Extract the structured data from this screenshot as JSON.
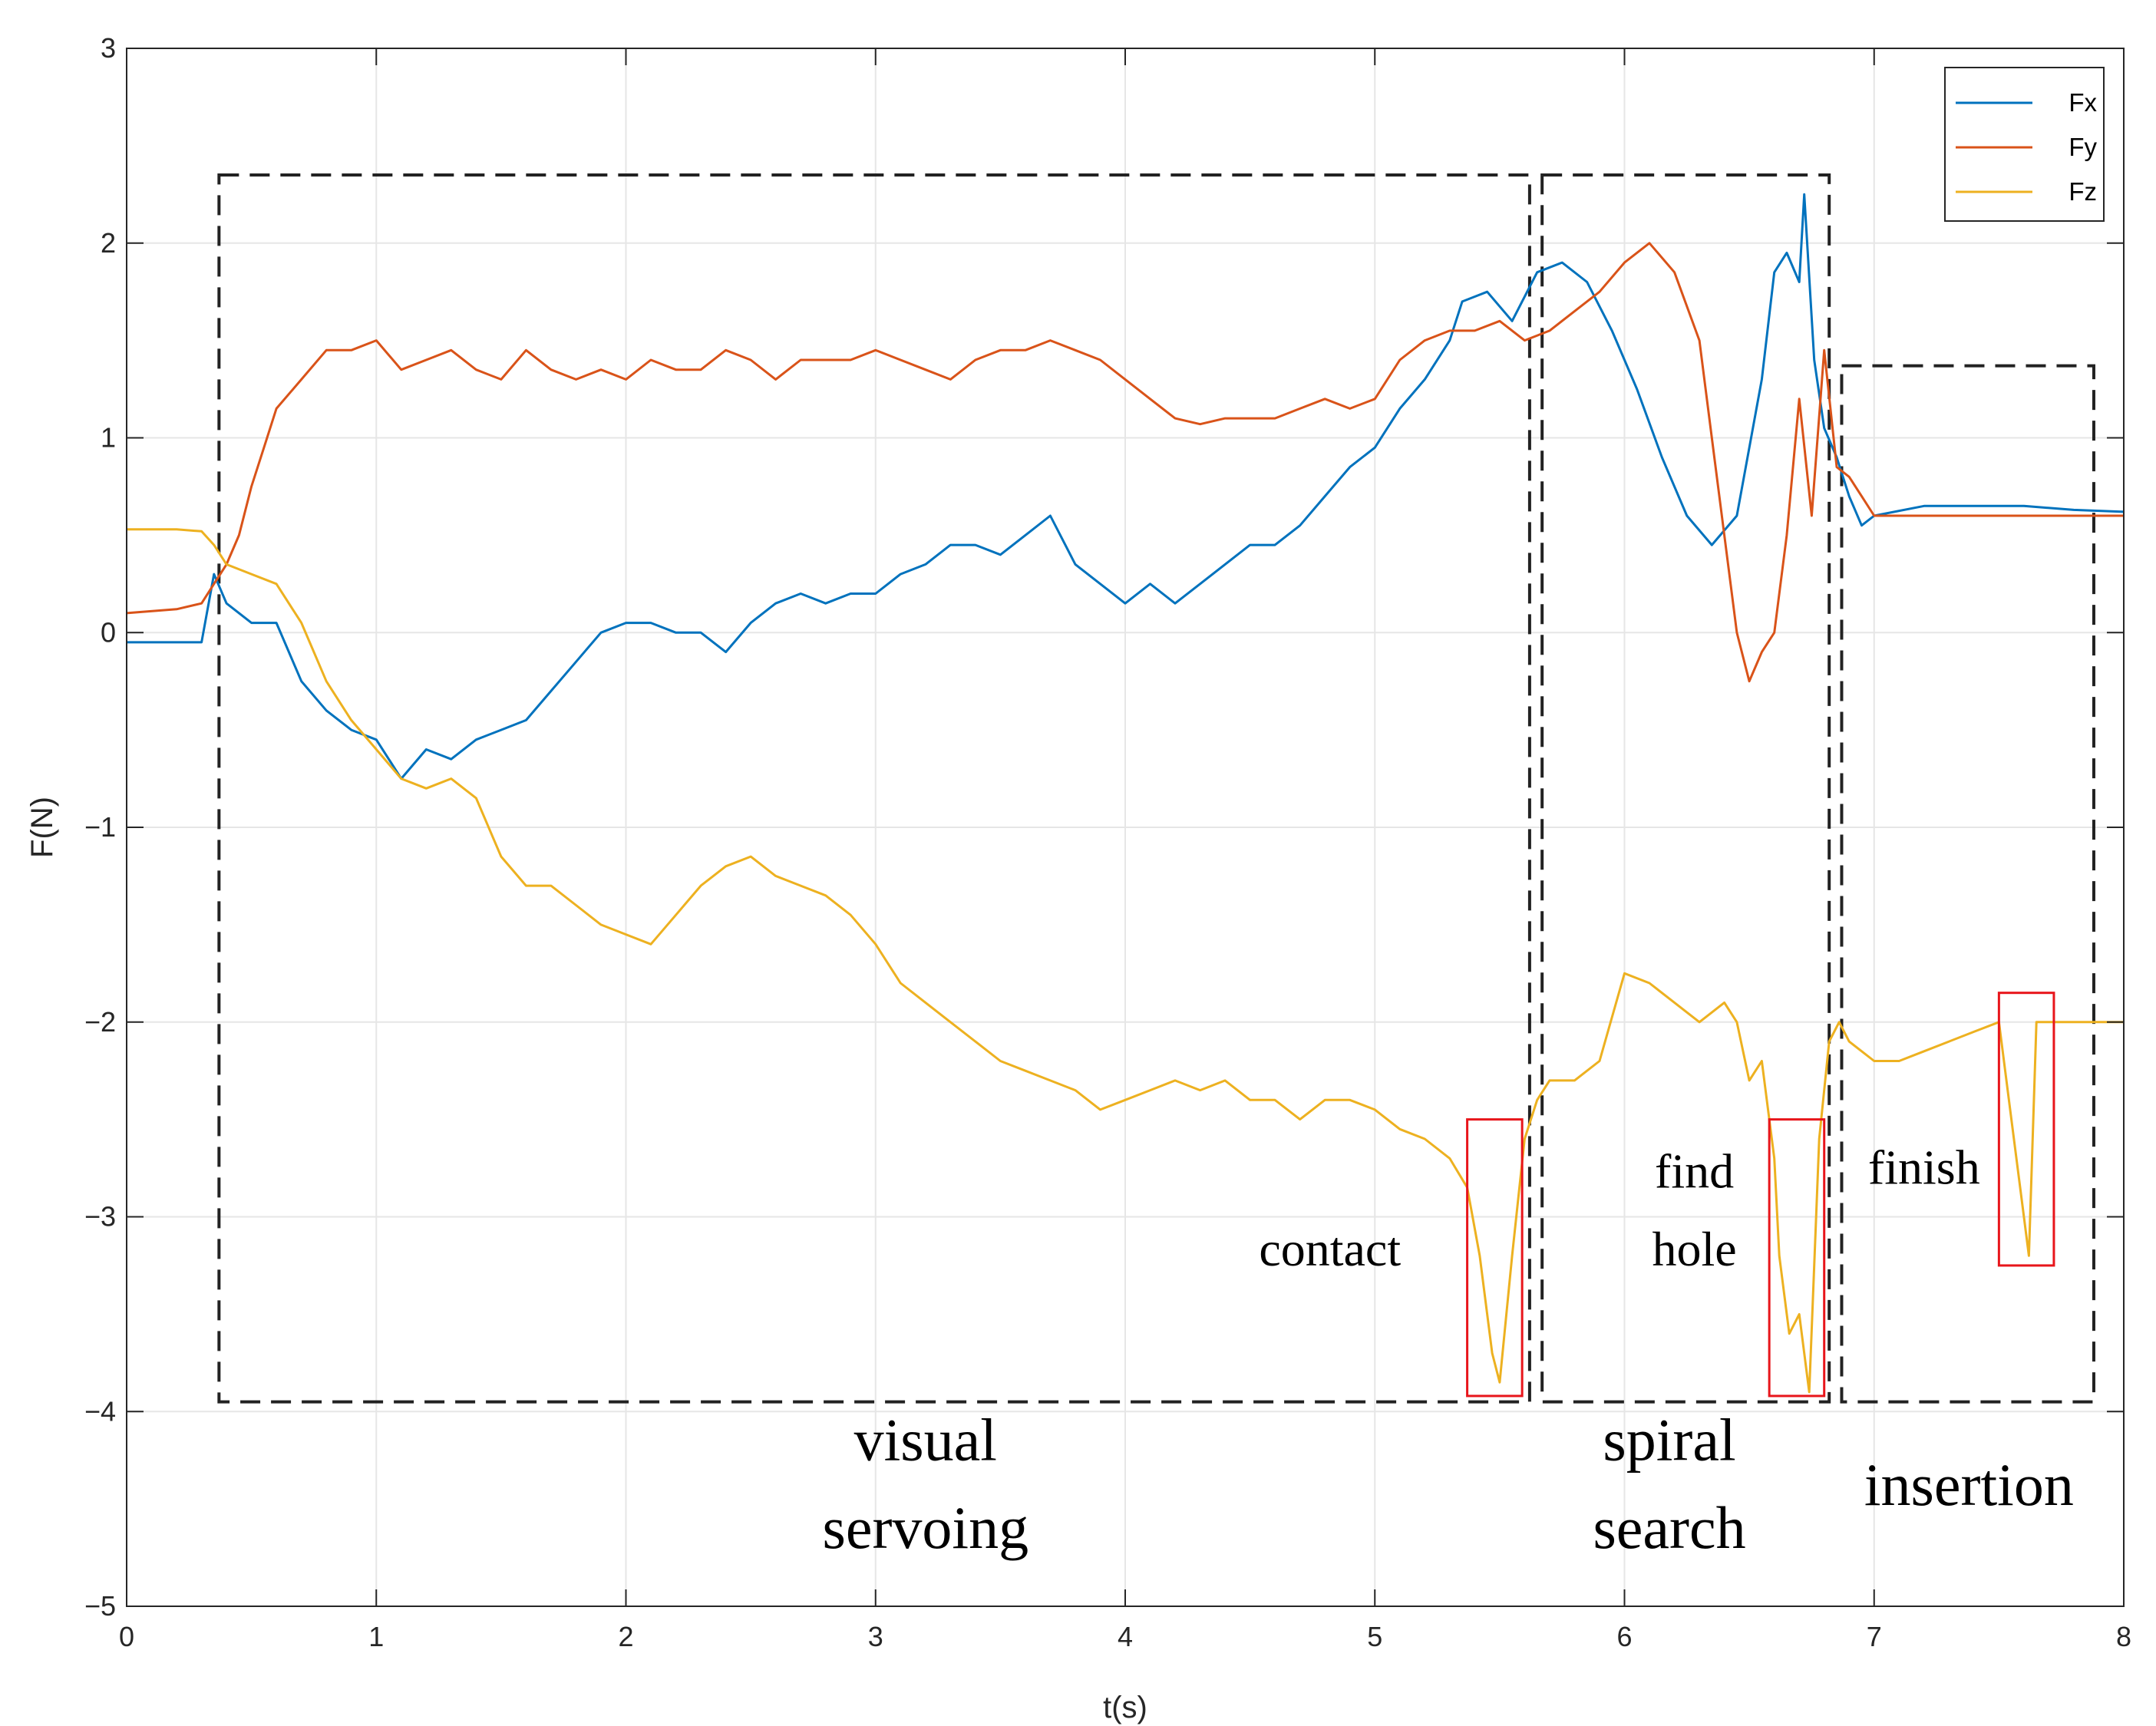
{
  "chart_data": {
    "type": "line",
    "xlabel": "t(s)",
    "ylabel": "F(N)",
    "xlim": [
      0,
      8
    ],
    "ylim": [
      -5,
      3
    ],
    "xticks": [
      0,
      1,
      2,
      3,
      4,
      5,
      6,
      7,
      8
    ],
    "yticks": [
      3,
      2,
      1,
      0,
      -1,
      -2,
      -3,
      -4,
      -5
    ],
    "grid": true,
    "legend_position": "top-right",
    "series": [
      {
        "name": "Fx",
        "color": "#0072BD",
        "x": [
          0,
          0.2,
          0.3,
          0.35,
          0.4,
          0.5,
          0.6,
          0.7,
          0.8,
          0.9,
          1.0,
          1.1,
          1.2,
          1.3,
          1.4,
          1.5,
          1.6,
          1.7,
          1.8,
          1.9,
          2.0,
          2.1,
          2.2,
          2.3,
          2.4,
          2.5,
          2.6,
          2.7,
          2.8,
          2.9,
          3.0,
          3.1,
          3.2,
          3.3,
          3.4,
          3.5,
          3.6,
          3.7,
          3.8,
          3.9,
          4.0,
          4.1,
          4.2,
          4.3,
          4.4,
          4.5,
          4.6,
          4.7,
          4.8,
          4.9,
          5.0,
          5.1,
          5.2,
          5.3,
          5.35,
          5.45,
          5.55,
          5.65,
          5.75,
          5.85,
          5.95,
          6.05,
          6.15,
          6.25,
          6.35,
          6.45,
          6.55,
          6.6,
          6.65,
          6.7,
          6.72,
          6.76,
          6.8,
          6.85,
          6.9,
          6.95,
          7.0,
          7.2,
          7.4,
          7.6,
          7.8,
          8.0
        ],
        "y": [
          -0.05,
          -0.05,
          -0.05,
          0.3,
          0.15,
          0.05,
          0.05,
          -0.25,
          -0.4,
          -0.5,
          -0.55,
          -0.75,
          -0.6,
          -0.65,
          -0.55,
          -0.5,
          -0.45,
          -0.3,
          -0.15,
          0.0,
          0.05,
          0.05,
          0.0,
          0.0,
          -0.1,
          0.05,
          0.15,
          0.2,
          0.15,
          0.2,
          0.2,
          0.3,
          0.35,
          0.45,
          0.45,
          0.4,
          0.5,
          0.6,
          0.35,
          0.25,
          0.15,
          0.25,
          0.15,
          0.25,
          0.35,
          0.45,
          0.45,
          0.55,
          0.7,
          0.85,
          0.95,
          1.15,
          1.3,
          1.5,
          1.7,
          1.75,
          1.6,
          1.85,
          1.9,
          1.8,
          1.55,
          1.25,
          0.9,
          0.6,
          0.45,
          0.6,
          1.3,
          1.85,
          1.95,
          1.8,
          2.25,
          1.4,
          1.05,
          0.9,
          0.7,
          0.55,
          0.6,
          0.65,
          0.65,
          0.65,
          0.63,
          0.62
        ]
      },
      {
        "name": "Fy",
        "color": "#D95319",
        "x": [
          0,
          0.2,
          0.3,
          0.35,
          0.4,
          0.45,
          0.5,
          0.55,
          0.6,
          0.7,
          0.8,
          0.9,
          1.0,
          1.1,
          1.2,
          1.3,
          1.4,
          1.5,
          1.6,
          1.7,
          1.8,
          1.9,
          2.0,
          2.1,
          2.2,
          2.3,
          2.4,
          2.5,
          2.6,
          2.7,
          2.8,
          2.9,
          3.0,
          3.1,
          3.2,
          3.3,
          3.4,
          3.5,
          3.6,
          3.7,
          3.8,
          3.9,
          4.0,
          4.1,
          4.2,
          4.3,
          4.4,
          4.5,
          4.6,
          4.7,
          4.8,
          4.9,
          5.0,
          5.1,
          5.2,
          5.3,
          5.4,
          5.5,
          5.6,
          5.7,
          5.8,
          5.9,
          6.0,
          6.1,
          6.2,
          6.3,
          6.35,
          6.4,
          6.45,
          6.5,
          6.55,
          6.6,
          6.65,
          6.7,
          6.75,
          6.8,
          6.85,
          6.9,
          6.95,
          7.0,
          7.2,
          7.4,
          7.6,
          7.8,
          8.0
        ],
        "y": [
          0.1,
          0.12,
          0.15,
          0.25,
          0.35,
          0.5,
          0.75,
          0.95,
          1.15,
          1.3,
          1.45,
          1.45,
          1.5,
          1.35,
          1.4,
          1.45,
          1.35,
          1.3,
          1.45,
          1.35,
          1.3,
          1.35,
          1.3,
          1.4,
          1.35,
          1.35,
          1.45,
          1.4,
          1.3,
          1.4,
          1.4,
          1.4,
          1.45,
          1.4,
          1.35,
          1.3,
          1.4,
          1.45,
          1.45,
          1.5,
          1.45,
          1.4,
          1.3,
          1.2,
          1.1,
          1.07,
          1.1,
          1.1,
          1.1,
          1.15,
          1.2,
          1.15,
          1.2,
          1.4,
          1.5,
          1.55,
          1.55,
          1.6,
          1.5,
          1.55,
          1.65,
          1.75,
          1.9,
          2.0,
          1.85,
          1.5,
          1.0,
          0.5,
          0.0,
          -0.25,
          -0.1,
          0.0,
          0.5,
          1.2,
          0.6,
          1.45,
          0.85,
          0.8,
          0.7,
          0.6,
          0.6,
          0.6,
          0.6,
          0.6,
          0.6
        ]
      },
      {
        "name": "Fz",
        "color": "#EDB120",
        "x": [
          0,
          0.2,
          0.3,
          0.35,
          0.4,
          0.5,
          0.6,
          0.7,
          0.8,
          0.9,
          1.0,
          1.1,
          1.2,
          1.3,
          1.4,
          1.5,
          1.6,
          1.7,
          1.8,
          1.9,
          2.0,
          2.1,
          2.2,
          2.3,
          2.4,
          2.5,
          2.6,
          2.7,
          2.8,
          2.9,
          3.0,
          3.1,
          3.2,
          3.3,
          3.4,
          3.5,
          3.6,
          3.7,
          3.8,
          3.9,
          4.0,
          4.1,
          4.2,
          4.3,
          4.4,
          4.5,
          4.6,
          4.7,
          4.8,
          4.9,
          5.0,
          5.1,
          5.2,
          5.3,
          5.37,
          5.42,
          5.47,
          5.5,
          5.55,
          5.6,
          5.65,
          5.7,
          5.8,
          5.9,
          6.0,
          6.1,
          6.2,
          6.3,
          6.4,
          6.45,
          6.5,
          6.55,
          6.6,
          6.62,
          6.66,
          6.7,
          6.74,
          6.78,
          6.82,
          6.86,
          6.9,
          7.0,
          7.1,
          7.2,
          7.3,
          7.4,
          7.5,
          7.55,
          7.6,
          7.62,
          7.65,
          7.7,
          7.8,
          8.0
        ],
        "y": [
          0.53,
          0.53,
          0.52,
          0.45,
          0.35,
          0.3,
          0.25,
          0.05,
          -0.25,
          -0.45,
          -0.6,
          -0.75,
          -0.8,
          -0.75,
          -0.85,
          -1.15,
          -1.3,
          -1.3,
          -1.4,
          -1.5,
          -1.55,
          -1.6,
          -1.45,
          -1.3,
          -1.2,
          -1.15,
          -1.25,
          -1.3,
          -1.35,
          -1.45,
          -1.6,
          -1.8,
          -1.9,
          -2.0,
          -2.1,
          -2.2,
          -2.25,
          -2.3,
          -2.35,
          -2.45,
          -2.4,
          -2.35,
          -2.3,
          -2.35,
          -2.3,
          -2.4,
          -2.4,
          -2.5,
          -2.4,
          -2.4,
          -2.45,
          -2.55,
          -2.6,
          -2.7,
          -2.85,
          -3.2,
          -3.7,
          -3.85,
          -3.2,
          -2.6,
          -2.4,
          -2.3,
          -2.3,
          -2.2,
          -1.75,
          -1.8,
          -1.9,
          -2.0,
          -1.9,
          -2.0,
          -2.3,
          -2.2,
          -2.7,
          -3.2,
          -3.6,
          -3.5,
          -3.9,
          -2.6,
          -2.1,
          -2.0,
          -2.1,
          -2.2,
          -2.2,
          -2.15,
          -2.1,
          -2.05,
          -2.0,
          -2.5,
          -3.0,
          -3.2,
          -2.0,
          -2.0,
          -2.0,
          -2.0
        ]
      }
    ],
    "phase_boxes": [
      {
        "label_lines": [
          "visual",
          "servoing"
        ],
        "x": [
          0.37,
          5.62
        ],
        "y": [
          -3.95,
          2.35
        ]
      },
      {
        "label_lines": [
          "spiral",
          "search"
        ],
        "x": [
          5.67,
          6.82
        ],
        "y": [
          -3.95,
          2.35
        ]
      },
      {
        "label_lines": [
          "insertion"
        ],
        "x": [
          6.87,
          7.88
        ],
        "y": [
          -3.95,
          1.37
        ]
      }
    ],
    "event_boxes": [
      {
        "label_lines": [
          "contact"
        ],
        "x": [
          5.37,
          5.59
        ],
        "y": [
          -3.92,
          -2.5
        ]
      },
      {
        "label_lines": [
          "find",
          "hole"
        ],
        "x": [
          6.58,
          6.8
        ],
        "y": [
          -3.92,
          -2.5
        ]
      },
      {
        "label_lines": [
          "finish"
        ],
        "x": [
          7.5,
          7.72
        ],
        "y": [
          -3.25,
          -1.85
        ]
      }
    ]
  }
}
